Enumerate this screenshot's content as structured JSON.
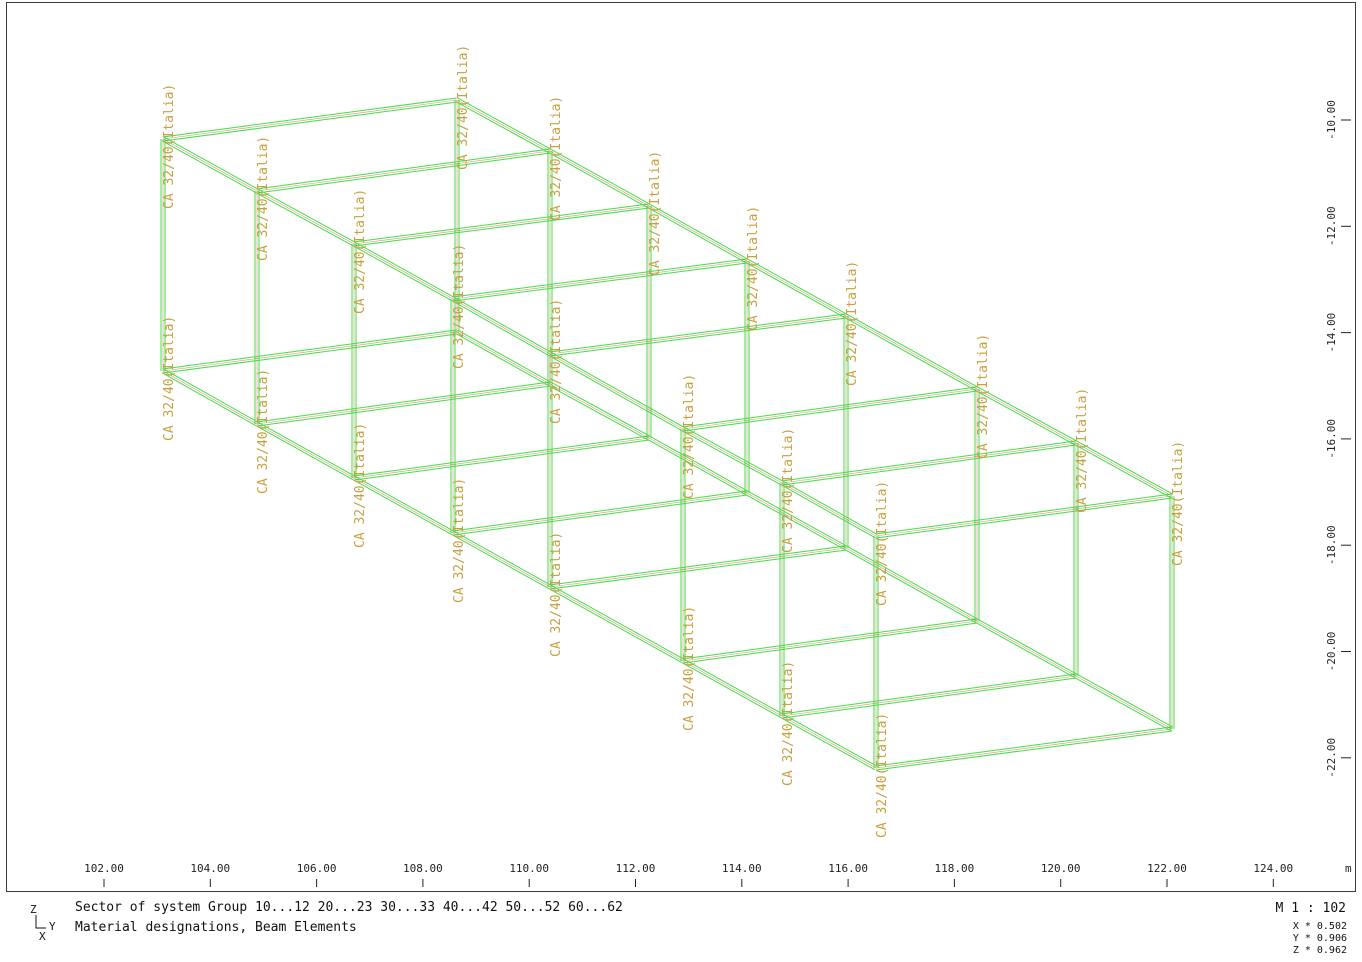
{
  "colors": {
    "frame_line": "#3fe03f",
    "member_axis": "#c04040",
    "label": "#c8a040",
    "axis_text": "#222222",
    "border": "#3c3c3c"
  },
  "material_label_parts": [
    "CA 32/40",
    "(Italia)"
  ],
  "x_axis": {
    "unit": "m",
    "ticks": [
      "102.00",
      "104.00",
      "106.00",
      "108.00",
      "110.00",
      "112.00",
      "114.00",
      "116.00",
      "118.00",
      "120.00",
      "122.00",
      "124.00"
    ]
  },
  "y_axis": {
    "ticks": [
      "-10.00",
      "-12.00",
      "-14.00",
      "-16.00",
      "-18.00",
      "-20.00",
      "-22.00"
    ]
  },
  "footer": {
    "line1": "Sector of system Group 10...12 20...23 30...33 40...42 50...52 60...62",
    "line2": "Material designations, Beam Elements",
    "axis_z": "Z",
    "axis_y": "Y",
    "axis_x": "X",
    "scale": "M 1 : 102",
    "view_x": "X * 0.502",
    "view_y": "Y * 0.906",
    "view_z": "Z * 0.962"
  }
}
